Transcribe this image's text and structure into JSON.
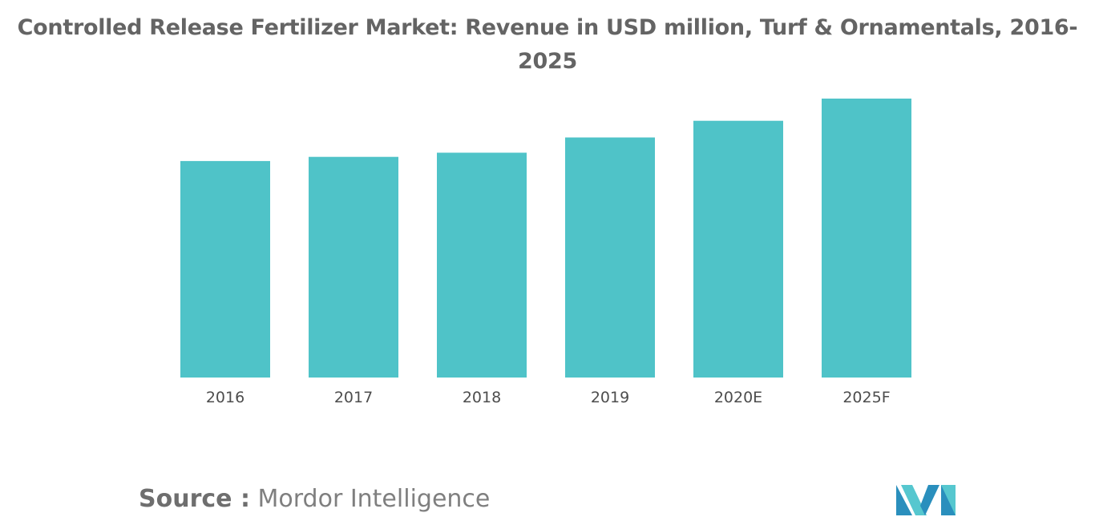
{
  "chart_data": {
    "type": "bar",
    "title_line1": "Controlled Release Fertilizer Market: Revenue in USD million, Turf & Ornamentals, 2016-",
    "title_line2": "2025",
    "categories": [
      "2016",
      "2017",
      "2018",
      "2019",
      "2020E",
      "2025F"
    ],
    "values": [
      78,
      79.5,
      81,
      86.5,
      92.5,
      100.5
    ],
    "ylim": [
      0,
      100.5
    ],
    "xlabel": "",
    "ylabel": "",
    "grid": false,
    "legend": "none",
    "bar_color": "#4fc3c8"
  },
  "source": {
    "prefix": "Source :",
    "name": "Mordor Intelligence"
  },
  "logo": {
    "icon": "mordor-intelligence-logo",
    "colors": [
      "#2a8fbd",
      "#56c7cf"
    ]
  }
}
